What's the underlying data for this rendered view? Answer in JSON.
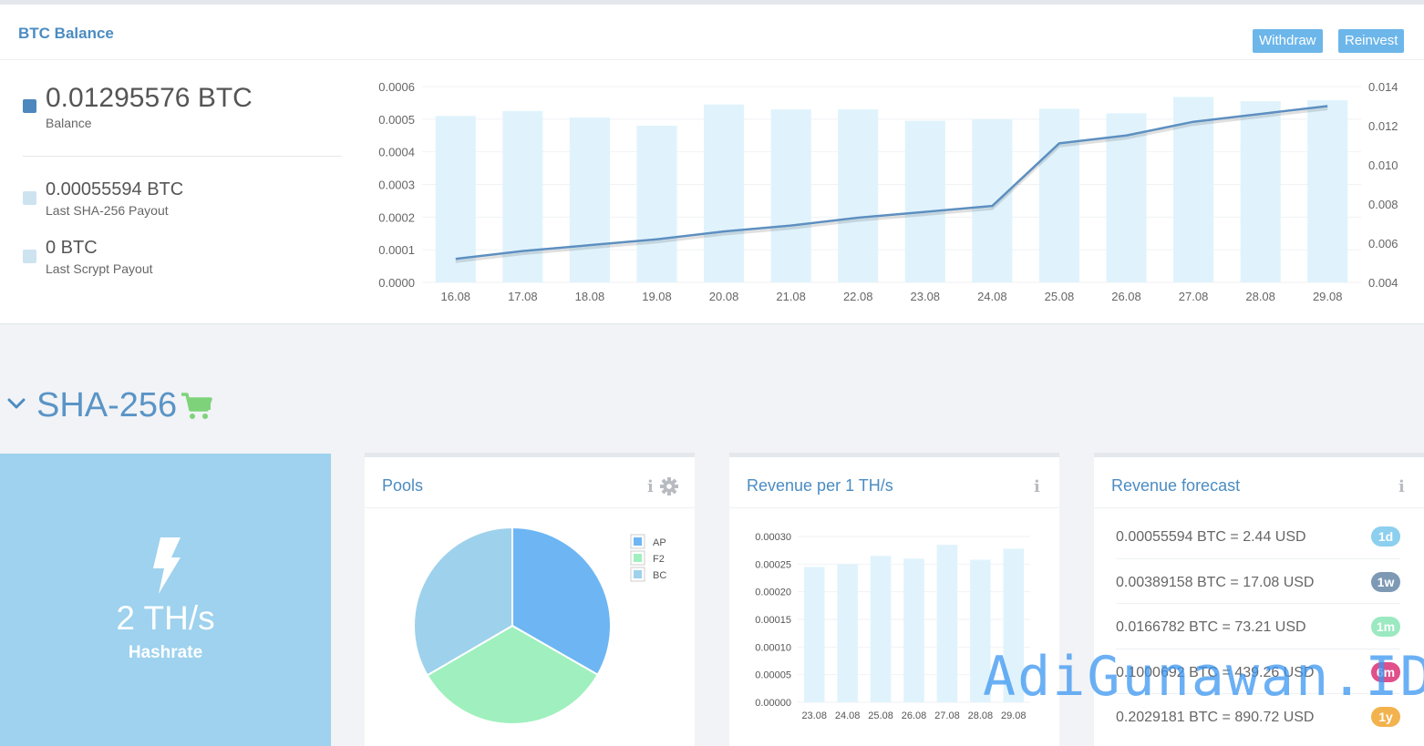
{
  "balance": {
    "title": "BTC Balance",
    "withdraw_label": "Withdraw",
    "reinvest_label": "Reinvest",
    "main_value": "0.01295576 BTC",
    "main_label": "Balance",
    "sha_value": "0.00055594 BTC",
    "sha_label": "Last SHA-256 Payout",
    "scrypt_value": "0 BTC",
    "scrypt_label": "Last Scrypt Payout"
  },
  "colors": {
    "accent": "#4b8cc2",
    "button": "#6cb6ea",
    "bar": "#e0f3fc",
    "line": "#5d8fc0",
    "hashrate_tile": "#9ed2ee",
    "pie_ap": "#6db6f3",
    "pie_f2": "#9ff0be",
    "pie_bc": "#9ed1ec"
  },
  "section": {
    "title": "SHA-256"
  },
  "hashrate": {
    "value": "2 TH/s",
    "label": "Hashrate"
  },
  "pools": {
    "title": "Pools"
  },
  "revenue": {
    "title": "Revenue per 1 TH/s"
  },
  "forecast": {
    "title": "Revenue forecast",
    "rows": [
      {
        "text": "0.00055594 BTC = 2.44 USD",
        "badge": "1d",
        "color": "#8ccfee"
      },
      {
        "text": "0.00389158 BTC = 17.08 USD",
        "badge": "1w",
        "color": "#7d99b4"
      },
      {
        "text": "0.0166782 BTC = 73.21 USD",
        "badge": "1m",
        "color": "#9be9c1"
      },
      {
        "text": "0.1000692 BTC = 439.26 USD",
        "badge": "6m",
        "color": "#e0508a"
      },
      {
        "text": "0.2029181 BTC = 890.72 USD",
        "badge": "1y",
        "color": "#f2b24e"
      }
    ]
  },
  "watermark": "AdiGunawan.ID",
  "chart_data": [
    {
      "type": "bar+line",
      "title": "",
      "categories": [
        "16.08",
        "17.08",
        "18.08",
        "19.08",
        "20.08",
        "21.08",
        "22.08",
        "23.08",
        "24.08",
        "25.08",
        "26.08",
        "27.08",
        "28.08",
        "29.08"
      ],
      "series": [
        {
          "name": "Payout",
          "axis": "left",
          "type": "bar",
          "values": [
            0.00051,
            0.000525,
            0.000505,
            0.00048,
            0.000545,
            0.00053,
            0.00053,
            0.000495,
            0.0005,
            0.000532,
            0.000518,
            0.000568,
            0.000555,
            0.000558
          ]
        },
        {
          "name": "Balance",
          "axis": "right",
          "type": "line",
          "values": [
            0.0052,
            0.0056,
            0.0059,
            0.0062,
            0.0066,
            0.0069,
            0.0073,
            0.0076,
            0.0079,
            0.0111,
            0.0115,
            0.0122,
            0.0126,
            0.013
          ]
        }
      ],
      "y_left_ticks": [
        "0.0000",
        "0.0001",
        "0.0002",
        "0.0003",
        "0.0004",
        "0.0005",
        "0.0006"
      ],
      "y_left_range": [
        0,
        0.0006
      ],
      "y_right_ticks": [
        "0.004",
        "0.006",
        "0.008",
        "0.010",
        "0.012",
        "0.014"
      ],
      "y_right_range": [
        0.004,
        0.014
      ]
    },
    {
      "type": "pie",
      "title": "",
      "labels": [
        "AP",
        "F2",
        "BC"
      ],
      "values": [
        33.3,
        33.3,
        33.4
      ]
    },
    {
      "type": "bar",
      "title": "",
      "categories": [
        "23.08",
        "24.08",
        "25.08",
        "26.08",
        "27.08",
        "28.08",
        "29.08"
      ],
      "values": [
        0.000245,
        0.00025,
        0.000265,
        0.00026,
        0.000285,
        0.000258,
        0.000278
      ],
      "y_ticks": [
        "0.00000",
        "0.00005",
        "0.00010",
        "0.00015",
        "0.00020",
        "0.00025",
        "0.00030"
      ],
      "ylim": [
        0,
        0.0003
      ]
    }
  ]
}
